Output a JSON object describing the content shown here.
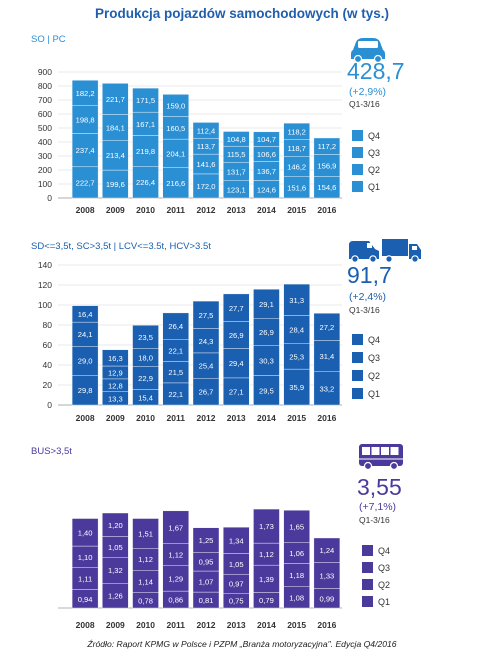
{
  "title": "Produkcja pojazdów samochodowych (w tys.)",
  "source": "Źródło: Raport KPMG w Polsce i PZPM „Branża motoryzacyjna\". Edycja Q4/2016",
  "chart_data": [
    {
      "type": "bar",
      "stacked": true,
      "title": "SO | PC",
      "color": "#2b8fd4",
      "icon": "car-icon",
      "categories": [
        "2008",
        "2009",
        "2010",
        "2011",
        "2012",
        "2013",
        "2014",
        "2015",
        "2016"
      ],
      "ylim": [
        0,
        900
      ],
      "yticks": [
        0,
        100,
        200,
        300,
        400,
        500,
        600,
        700,
        800,
        900
      ],
      "series": [
        {
          "name": "Q1",
          "values": [
            "222,7",
            "199,6",
            "226,4",
            "216,6",
            "172,0",
            "123,1",
            "124,6",
            "151,6",
            "154,6"
          ]
        },
        {
          "name": "Q2",
          "values": [
            "237,4",
            "213,4",
            "219,8",
            "204,1",
            "141,6",
            "131,7",
            "136,7",
            "146,2",
            "156,9"
          ]
        },
        {
          "name": "Q3",
          "values": [
            "198,8",
            "184,1",
            "167,1",
            "160,5",
            "113,7",
            "115,5",
            "106,6",
            "118,7",
            "117,2"
          ]
        },
        {
          "name": "Q4",
          "values": [
            "182,2",
            "221,7",
            "171,5",
            "159,0",
            "112,4",
            "104,8",
            "104,7",
            "118,2",
            ""
          ]
        }
      ],
      "highlight": {
        "value": "428,7",
        "change": "(+2,9%)",
        "period": "Q1-3/16"
      }
    },
    {
      "type": "bar",
      "stacked": true,
      "title": "SD<=3,5t, SC>3,5t | LCV<=3.5t, HCV>3.5t",
      "color": "#1a5fb0",
      "icon": "van-truck-icon",
      "categories": [
        "2008",
        "2009",
        "2010",
        "2011",
        "2012",
        "2013",
        "2014",
        "2015",
        "2016"
      ],
      "ylim": [
        0,
        140
      ],
      "yticks": [
        0,
        20,
        40,
        60,
        80,
        100,
        120,
        140
      ],
      "series": [
        {
          "name": "Q1",
          "values": [
            "29,8",
            "13,3",
            "15,4",
            "22,1",
            "26,7",
            "27,1",
            "29,5",
            "35,9",
            "33,2"
          ]
        },
        {
          "name": "Q2",
          "values": [
            "29,0",
            "12,8",
            "22,9",
            "21,5",
            "25,4",
            "29,4",
            "30,3",
            "25,3",
            "31,4"
          ]
        },
        {
          "name": "Q3",
          "values": [
            "24,1",
            "12,9",
            "18,0",
            "22,1",
            "24,3",
            "26,9",
            "26,9",
            "28,4",
            "27,2"
          ]
        },
        {
          "name": "Q4",
          "values": [
            "16,4",
            "16,3",
            "23,5",
            "26,4",
            "27,5",
            "27,7",
            "29,1",
            "31,3",
            ""
          ]
        }
      ],
      "highlight": {
        "value": "91,7",
        "change": "(+2,4%)",
        "period": "Q1-3/16"
      }
    },
    {
      "type": "bar",
      "stacked": true,
      "title": "BUS>3,5t",
      "color": "#4b3a9c",
      "icon": "bus-icon",
      "categories": [
        "2008",
        "2009",
        "2010",
        "2011",
        "2012",
        "2013",
        "2014",
        "2015",
        "2016"
      ],
      "ylim": [
        0,
        6
      ],
      "yticks": [],
      "series": [
        {
          "name": "Q1",
          "values": [
            "0,94",
            "1,26",
            "0,78",
            "0,86",
            "0,81",
            "0,75",
            "0,79",
            "1,08",
            "0,99"
          ]
        },
        {
          "name": "Q2",
          "values": [
            "1,11",
            "1,32",
            "1,14",
            "1,29",
            "1,07",
            "0,97",
            "1,39",
            "1,18",
            "1,33"
          ]
        },
        {
          "name": "Q3",
          "values": [
            "1,10",
            "1,05",
            "1,12",
            "1,12",
            "0,95",
            "1,05",
            "1,12",
            "1,06",
            "1,24"
          ]
        },
        {
          "name": "Q4",
          "values": [
            "1,40",
            "1,20",
            "1,51",
            "1,67",
            "1,25",
            "1,34",
            "1,73",
            "1,65",
            ""
          ]
        }
      ],
      "highlight": {
        "value": "3,55",
        "change": "(+7,1%)",
        "period": "Q1-3/16"
      }
    }
  ]
}
